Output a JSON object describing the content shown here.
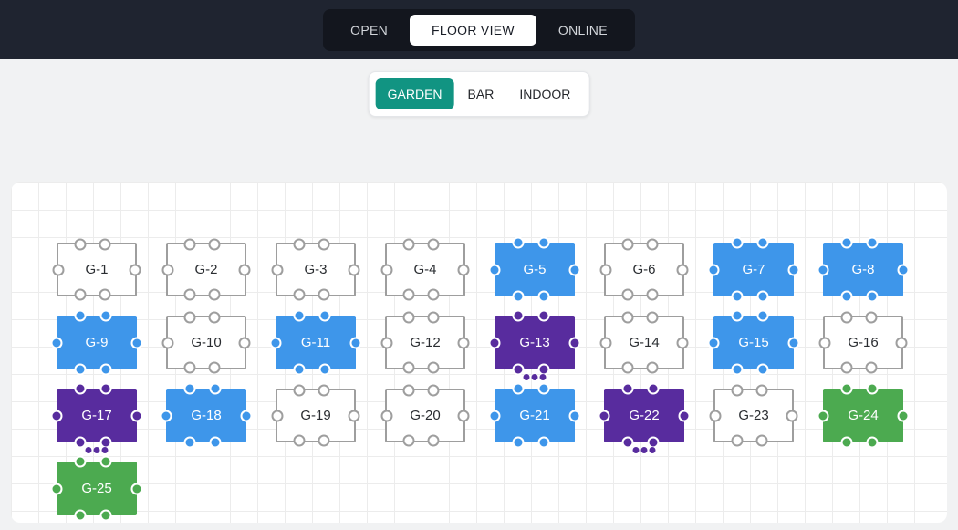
{
  "header": {
    "view_tabs": [
      {
        "label": "OPEN",
        "active": false
      },
      {
        "label": "FLOOR VIEW",
        "active": true
      },
      {
        "label": "ONLINE",
        "active": false
      }
    ]
  },
  "area_tabs": [
    {
      "label": "GARDEN",
      "active": true
    },
    {
      "label": "BAR",
      "active": false
    },
    {
      "label": "INDOOR",
      "active": false
    }
  ],
  "colors": {
    "header_bg": "#1f2430",
    "header_tabs_bg": "#13161e",
    "page_bg": "#f1f2f3",
    "area_active_teal": "#119482",
    "table_blue": "#3e96ea",
    "table_purple": "#582c9e",
    "table_green": "#4caa50",
    "table_empty_border": "#9e9e9e"
  },
  "floor": {
    "seats_per_table": 6,
    "tables": [
      {
        "label": "G-1",
        "status": "available",
        "row": 1,
        "col": 1,
        "dots": false
      },
      {
        "label": "G-2",
        "status": "available",
        "row": 1,
        "col": 2,
        "dots": false
      },
      {
        "label": "G-3",
        "status": "available",
        "row": 1,
        "col": 3,
        "dots": false
      },
      {
        "label": "G-4",
        "status": "available",
        "row": 1,
        "col": 4,
        "dots": false
      },
      {
        "label": "G-5",
        "status": "blue",
        "row": 1,
        "col": 5,
        "dots": false
      },
      {
        "label": "G-6",
        "status": "available",
        "row": 1,
        "col": 6,
        "dots": false
      },
      {
        "label": "G-7",
        "status": "blue",
        "row": 1,
        "col": 7,
        "dots": false
      },
      {
        "label": "G-8",
        "status": "blue",
        "row": 1,
        "col": 8,
        "dots": false
      },
      {
        "label": "G-9",
        "status": "blue",
        "row": 2,
        "col": 1,
        "dots": false
      },
      {
        "label": "G-10",
        "status": "available",
        "row": 2,
        "col": 2,
        "dots": false
      },
      {
        "label": "G-11",
        "status": "blue",
        "row": 2,
        "col": 3,
        "dots": false
      },
      {
        "label": "G-12",
        "status": "available",
        "row": 2,
        "col": 4,
        "dots": false
      },
      {
        "label": "G-13",
        "status": "purple",
        "row": 2,
        "col": 5,
        "dots": true
      },
      {
        "label": "G-14",
        "status": "available",
        "row": 2,
        "col": 6,
        "dots": false
      },
      {
        "label": "G-15",
        "status": "blue",
        "row": 2,
        "col": 7,
        "dots": false
      },
      {
        "label": "G-16",
        "status": "available",
        "row": 2,
        "col": 8,
        "dots": false
      },
      {
        "label": "G-17",
        "status": "purple",
        "row": 3,
        "col": 1,
        "dots": true
      },
      {
        "label": "G-18",
        "status": "blue",
        "row": 3,
        "col": 2,
        "dots": false
      },
      {
        "label": "G-19",
        "status": "available",
        "row": 3,
        "col": 3,
        "dots": false
      },
      {
        "label": "G-20",
        "status": "available",
        "row": 3,
        "col": 4,
        "dots": false
      },
      {
        "label": "G-21",
        "status": "blue",
        "row": 3,
        "col": 5,
        "dots": false
      },
      {
        "label": "G-22",
        "status": "purple",
        "row": 3,
        "col": 6,
        "dots": true
      },
      {
        "label": "G-23",
        "status": "available",
        "row": 3,
        "col": 7,
        "dots": false
      },
      {
        "label": "G-24",
        "status": "green",
        "row": 3,
        "col": 8,
        "dots": false
      },
      {
        "label": "G-25",
        "status": "green",
        "row": 4,
        "col": 1,
        "dots": false
      }
    ]
  }
}
